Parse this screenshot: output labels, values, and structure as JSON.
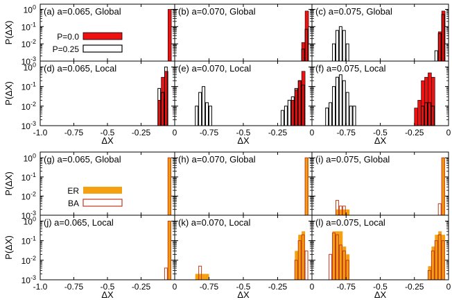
{
  "chart_data": {
    "type": "bar",
    "x_ticks": [
      -1.0,
      -0.75,
      -0.5,
      -0.25,
      0
    ],
    "x_tick_labels": [
      "-1.0",
      "-0.75",
      "-0.5",
      "-0.25",
      "0"
    ],
    "xlabel": "ΔX",
    "ylabel": "P(ΔX)",
    "y_scale": "log",
    "ylim": [
      0.001,
      2
    ],
    "y_ticks": [
      0.001,
      0.01,
      0.1,
      1
    ],
    "y_tick_labels": [
      "10",
      "10",
      "10",
      "10"
    ],
    "y_tick_exponents": [
      "-3",
      "-2",
      "-1",
      "0"
    ],
    "bin_width": 0.025,
    "groups": [
      {
        "legend": [
          {
            "label": "P=0.0",
            "fill": "#ee1111",
            "stroke": "#000000"
          },
          {
            "label": "P=0.25",
            "fill": "#ffffff",
            "stroke": "#000000"
          }
        ],
        "panels": [
          {
            "label": "(a) a=0.065, Global",
            "xlim": [
              -1.0,
              0
            ],
            "series": [
              {
                "style": "solid",
                "bars": [
                  {
                    "x": -0.0375,
                    "y": 1.0
                  }
                ]
              },
              {
                "style": "outline",
                "bars": []
              }
            ]
          },
          {
            "label": "(b) a=0.070, Global",
            "xlim": [
              -1.0,
              0
            ],
            "series": [
              {
                "style": "solid",
                "bars": [
                  {
                    "x": -0.0625,
                    "y": 0.012
                  },
                  {
                    "x": -0.0375,
                    "y": 0.8
                  }
                ]
              },
              {
                "style": "outline",
                "bars": [
                  {
                    "x": -0.0625,
                    "y": 0.005
                  },
                  {
                    "x": -0.0375,
                    "y": 0.07
                  }
                ]
              }
            ]
          },
          {
            "label": "(c) a=0.075, Global",
            "xlim": [
              -1.0,
              0
            ],
            "series": [
              {
                "style": "solid",
                "bars": [
                  {
                    "x": -0.0625,
                    "y": 0.05
                  },
                  {
                    "x": -0.0375,
                    "y": 0.8
                  }
                ]
              },
              {
                "style": "outline",
                "bars": [
                  {
                    "x": -0.8375,
                    "y": 0.01
                  },
                  {
                    "x": -0.8125,
                    "y": 0.06
                  },
                  {
                    "x": -0.7875,
                    "y": 0.1
                  },
                  {
                    "x": -0.7625,
                    "y": 0.06
                  },
                  {
                    "x": -0.7375,
                    "y": 0.01
                  },
                  {
                    "x": -0.0875,
                    "y": 0.004
                  },
                  {
                    "x": -0.0625,
                    "y": 0.04
                  },
                  {
                    "x": -0.0375,
                    "y": 0.5
                  }
                ]
              }
            ]
          },
          {
            "label": "(d) a=0.065, Local",
            "xlim": [
              -1.0,
              0
            ],
            "series": [
              {
                "style": "solid",
                "bars": [
                  {
                    "x": -0.1125,
                    "y": 0.02
                  },
                  {
                    "x": -0.0875,
                    "y": 0.3
                  },
                  {
                    "x": -0.0625,
                    "y": 0.6
                  }
                ]
              },
              {
                "style": "outline",
                "bars": [
                  {
                    "x": -0.1125,
                    "y": 0.08
                  },
                  {
                    "x": -0.0875,
                    "y": 0.05
                  },
                  {
                    "x": -0.0625,
                    "y": 1.0
                  }
                ]
              }
            ]
          },
          {
            "label": "(e) a=0.070, Local",
            "xlim": [
              -1.0,
              0
            ],
            "series": [
              {
                "style": "solid",
                "bars": [
                  {
                    "x": -0.1375,
                    "y": 0.02
                  },
                  {
                    "x": -0.1125,
                    "y": 0.07
                  },
                  {
                    "x": -0.0875,
                    "y": 0.2
                  },
                  {
                    "x": -0.0625,
                    "y": 0.6
                  }
                ]
              },
              {
                "style": "outline",
                "bars": [
                  {
                    "x": -0.8375,
                    "y": 0.01
                  },
                  {
                    "x": -0.8125,
                    "y": 0.05
                  },
                  {
                    "x": -0.7875,
                    "y": 0.1
                  },
                  {
                    "x": -0.7625,
                    "y": 0.015
                  },
                  {
                    "x": -0.7375,
                    "y": 0.01
                  },
                  {
                    "x": -0.2125,
                    "y": 0.006
                  },
                  {
                    "x": -0.1875,
                    "y": 0.01
                  },
                  {
                    "x": -0.1625,
                    "y": 0.02
                  },
                  {
                    "x": -0.1375,
                    "y": 0.03
                  },
                  {
                    "x": -0.1125,
                    "y": 0.08
                  },
                  {
                    "x": -0.0875,
                    "y": 0.2
                  },
                  {
                    "x": -0.0625,
                    "y": 0.12
                  }
                ]
              }
            ]
          },
          {
            "label": "(f) a=0.075, Local",
            "xlim": [
              -1.0,
              0
            ],
            "series": [
              {
                "style": "solid",
                "bars": [
                  {
                    "x": -0.2375,
                    "y": 0.008
                  },
                  {
                    "x": -0.2125,
                    "y": 0.02
                  },
                  {
                    "x": -0.1875,
                    "y": 0.2
                  },
                  {
                    "x": -0.1625,
                    "y": 0.3
                  },
                  {
                    "x": -0.1375,
                    "y": 0.5
                  },
                  {
                    "x": -0.1125,
                    "y": 0.3
                  }
                ]
              },
              {
                "style": "outline",
                "bars": [
                  {
                    "x": -0.8875,
                    "y": 0.008
                  },
                  {
                    "x": -0.8625,
                    "y": 0.015
                  },
                  {
                    "x": -0.8375,
                    "y": 0.1
                  },
                  {
                    "x": -0.8125,
                    "y": 0.3
                  },
                  {
                    "x": -0.7875,
                    "y": 0.4
                  },
                  {
                    "x": -0.7625,
                    "y": 0.2
                  },
                  {
                    "x": -0.7375,
                    "y": 0.05
                  },
                  {
                    "x": -0.7125,
                    "y": 0.01
                  },
                  {
                    "x": -0.6875,
                    "y": 0.01
                  },
                  {
                    "x": -0.1875,
                    "y": 0.01
                  },
                  {
                    "x": -0.1625,
                    "y": 0.015
                  },
                  {
                    "x": -0.1375,
                    "y": 0.015
                  },
                  {
                    "x": -0.1125,
                    "y": 0.01
                  }
                ]
              }
            ]
          }
        ]
      },
      {
        "legend": [
          {
            "label": "ER",
            "fill": "#f5a011",
            "stroke": "#f5a011"
          },
          {
            "label": "BA",
            "fill": "none",
            "stroke": "#c0391b"
          }
        ],
        "panels": [
          {
            "label": "(g) a=0.065, Global",
            "xlim": [
              -1.0,
              0
            ],
            "series": [
              {
                "style": "solid",
                "bars": [
                  {
                    "x": -0.0375,
                    "y": 1.0
                  }
                ]
              },
              {
                "style": "outline",
                "bars": [
                  {
                    "x": -0.0375,
                    "y": 1.0
                  }
                ]
              }
            ]
          },
          {
            "label": "(h) a=0.070, Global",
            "xlim": [
              -1.0,
              0
            ],
            "series": [
              {
                "style": "solid",
                "bars": [
                  {
                    "x": -0.0375,
                    "y": 1.0
                  }
                ]
              },
              {
                "style": "outline",
                "bars": [
                  {
                    "x": -0.0375,
                    "y": 1.0
                  }
                ]
              }
            ]
          },
          {
            "label": "(i) a=0.075, Global",
            "xlim": [
              -1.0,
              0
            ],
            "series": [
              {
                "style": "solid",
                "bars": [
                  {
                    "x": -0.8125,
                    "y": 0.002
                  },
                  {
                    "x": -0.7875,
                    "y": 0.002
                  },
                  {
                    "x": -0.7625,
                    "y": 0.002
                  },
                  {
                    "x": -0.7375,
                    "y": 0.002
                  },
                  {
                    "x": -0.0375,
                    "y": 1.0
                  }
                ]
              },
              {
                "style": "outline",
                "bars": [
                  {
                    "x": -0.8125,
                    "y": 0.006
                  },
                  {
                    "x": -0.7875,
                    "y": 0.003
                  },
                  {
                    "x": -0.7625,
                    "y": 0.003
                  },
                  {
                    "x": -0.0625,
                    "y": 0.004
                  },
                  {
                    "x": -0.0375,
                    "y": 1.0
                  }
                ]
              }
            ]
          },
          {
            "label": "(j) a=0.065, Local",
            "xlim": [
              -1.0,
              0
            ],
            "series": [
              {
                "style": "solid",
                "bars": [
                  {
                    "x": -0.0375,
                    "y": 1.0
                  }
                ]
              },
              {
                "style": "outline",
                "bars": [
                  {
                    "x": -0.0625,
                    "y": 0.004
                  },
                  {
                    "x": -0.0375,
                    "y": 1.0
                  }
                ]
              }
            ]
          },
          {
            "label": "(k) a=0.070, Local",
            "xlim": [
              -1.0,
              0
            ],
            "series": [
              {
                "style": "solid",
                "bars": [
                  {
                    "x": -0.8375,
                    "y": 0.002
                  },
                  {
                    "x": -0.8125,
                    "y": 0.002
                  },
                  {
                    "x": -0.7875,
                    "y": 0.002
                  },
                  {
                    "x": -0.7625,
                    "y": 0.002
                  },
                  {
                    "x": -0.1125,
                    "y": 0.03
                  },
                  {
                    "x": -0.0875,
                    "y": 0.2
                  },
                  {
                    "x": -0.0625,
                    "y": 0.3
                  }
                ]
              },
              {
                "style": "outline",
                "bars": [
                  {
                    "x": -0.8125,
                    "y": 0.005
                  },
                  {
                    "x": -0.1125,
                    "y": 0.01
                  },
                  {
                    "x": -0.0875,
                    "y": 0.1
                  },
                  {
                    "x": -0.0625,
                    "y": 0.2
                  },
                  {
                    "x": -0.0375,
                    "y": 0.03
                  }
                ]
              }
            ]
          },
          {
            "label": "(l) a=0.075, Local",
            "xlim": [
              -1.0,
              0
            ],
            "series": [
              {
                "style": "solid",
                "bars": [
                  {
                    "x": -0.8375,
                    "y": 0.3
                  },
                  {
                    "x": -0.8125,
                    "y": 0.3
                  },
                  {
                    "x": -0.7875,
                    "y": 0.3
                  },
                  {
                    "x": -0.7625,
                    "y": 0.05
                  },
                  {
                    "x": -0.7375,
                    "y": 0.02
                  },
                  {
                    "x": -0.1375,
                    "y": 0.005
                  },
                  {
                    "x": -0.1125,
                    "y": 0.05
                  },
                  {
                    "x": -0.0875,
                    "y": 0.2
                  },
                  {
                    "x": -0.0625,
                    "y": 0.3
                  },
                  {
                    "x": -0.0375,
                    "y": 0.2
                  }
                ]
              },
              {
                "style": "outline",
                "bars": [
                  {
                    "x": -0.8625,
                    "y": 0.02
                  },
                  {
                    "x": -0.8375,
                    "y": 0.25
                  },
                  {
                    "x": -0.8125,
                    "y": 0.2
                  },
                  {
                    "x": -0.7875,
                    "y": 0.06
                  },
                  {
                    "x": -0.7625,
                    "y": 0.03
                  },
                  {
                    "x": -0.7375,
                    "y": 0.01
                  },
                  {
                    "x": -0.1375,
                    "y": 0.003
                  },
                  {
                    "x": -0.1125,
                    "y": 0.03
                  },
                  {
                    "x": -0.0875,
                    "y": 0.1
                  },
                  {
                    "x": -0.0625,
                    "y": 0.2
                  },
                  {
                    "x": -0.0375,
                    "y": 0.1
                  }
                ]
              }
            ]
          }
        ]
      }
    ]
  }
}
